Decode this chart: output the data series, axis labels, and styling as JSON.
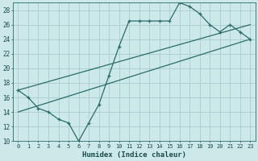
{
  "xlabel": "Humidex (Indice chaleur)",
  "bg_color": "#cce8e8",
  "grid_color": "#aacccc",
  "line_color": "#2a6b6b",
  "xlim": [
    -0.5,
    23.5
  ],
  "ylim": [
    10,
    29
  ],
  "xticks": [
    0,
    1,
    2,
    3,
    4,
    5,
    6,
    7,
    8,
    9,
    10,
    11,
    12,
    13,
    14,
    15,
    16,
    17,
    18,
    19,
    20,
    21,
    22,
    23
  ],
  "yticks": [
    10,
    12,
    14,
    16,
    18,
    20,
    22,
    24,
    26,
    28
  ],
  "line1_x": [
    0,
    1,
    2,
    3,
    4,
    5,
    6,
    7,
    8,
    9,
    10,
    11,
    12,
    13,
    14,
    15,
    16,
    17,
    18,
    19,
    20,
    21,
    22,
    23
  ],
  "line1_y": [
    17,
    16,
    14.5,
    14,
    13,
    12.5,
    10,
    12.5,
    15,
    19,
    23,
    26.5,
    26.5,
    26.5,
    26.5,
    26.5,
    29,
    28.5,
    27.5,
    26,
    25,
    26,
    25,
    24
  ],
  "line2_x": [
    0,
    23
  ],
  "line2_y": [
    17,
    26
  ],
  "line3_x": [
    0,
    23
  ],
  "line3_y": [
    14,
    24
  ]
}
